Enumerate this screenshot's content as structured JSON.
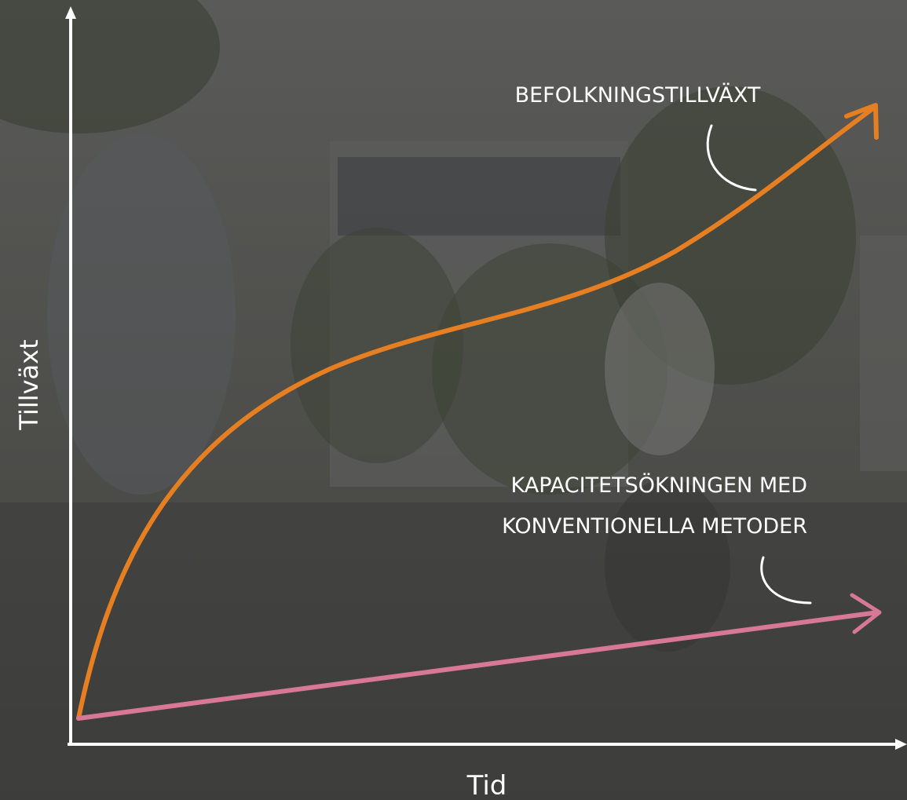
{
  "labels": {
    "population_growth": "BEFOLKNINGSTILLVÄXT",
    "capacity_increase": [
      "KAPACITETSÖKNINGEN MED",
      "KONVENTIONELLA METODER"
    ]
  },
  "axes": {
    "y": "Tillväxt",
    "x": "Tid"
  }
}
